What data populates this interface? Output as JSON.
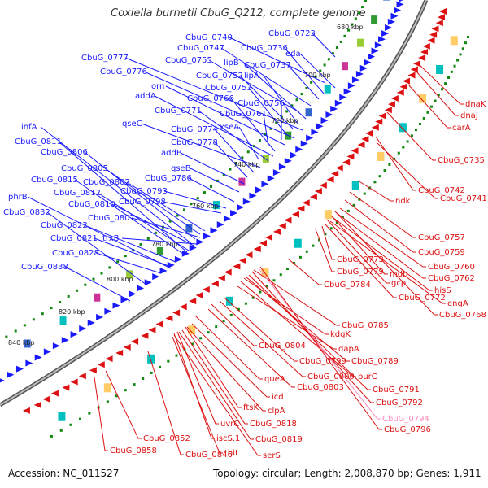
{
  "title": "Coxiella burnetii CbuG_Q212, complete genome",
  "footer": {
    "accession": "Accession: NC_011527",
    "topology": "Topology: circular; Length: 2,008,870 bp; Genes: 1,911"
  },
  "colors": {
    "forward": "#1a1aff",
    "reverse": "#dd1111",
    "highlight": "#ff88bb",
    "backbone": "#777777"
  },
  "ticks": [
    "680 kbp",
    "700 kbp",
    "720 kbp",
    "740 kbp",
    "760 kbp",
    "780 kbp",
    "800 kbp",
    "820 kbp",
    "840 kbp"
  ],
  "blue_labels": [
    "CbuG_0723",
    "CbuG_0740",
    "eda",
    "CbuG_0736",
    "CbuG_0747",
    "CbuG_0777",
    "CbuG_0755",
    "lipB",
    "CbuG_0737",
    "CbuG_0776",
    "CbuG_0752",
    "lipA",
    "orn",
    "CbuG_0753",
    "addA",
    "CbuG_0766",
    "CbuG_0756",
    "CbuG_0771",
    "CbuG_0761",
    "qseC",
    "xseA",
    "CbuG_0774",
    "infA",
    "CbuG_0778",
    "CbuG_0811",
    "addB",
    "CbuG_0806",
    "qseB",
    "CbuG_0805",
    "CbuG_0786",
    "CbuG_0815",
    "CbuG_0802",
    "CbuG_0812",
    "CbuG_0793",
    "CbuG_0810",
    "CbuG_0798",
    "phrB",
    "CbuG_0807",
    "CbuG_0832",
    "CbuG_0822",
    "trxB",
    "CbuG_0821",
    "CbuG_0828",
    "CbuG_0838"
  ],
  "red_labels": [
    "dnaK",
    "dnaJ",
    "carA",
    "CbuG_0735",
    "CbuG_0742",
    "CbuG_0741",
    "ndk",
    "CbuG_0757",
    "CbuG_0759",
    "CbuG_0773",
    "CbuG_0760",
    "CbuG_0779",
    "mdh",
    "CbuG_0762",
    "gcp",
    "hisS",
    "CbuG_0784",
    "CbuG_0772",
    "engA",
    "CbuG_0768",
    "CbuG_0785",
    "kdgK",
    "dapA",
    "CbuG_0804",
    "CbuG_0799",
    "CbuG_0789",
    "CbuG_0800",
    "purC",
    "queA",
    "CbuG_0803",
    "CbuG_0791",
    "icd",
    "CbuG_0792",
    "ftsK",
    "clpA",
    "CbuG_0794",
    "CbuG_0818",
    "uvrC",
    "CbuG_0796",
    "iscS.1",
    "CbuG_0819",
    "CbuG_0852",
    "thiI",
    "serS",
    "CbuG_0858",
    "CbuG_0846"
  ]
}
